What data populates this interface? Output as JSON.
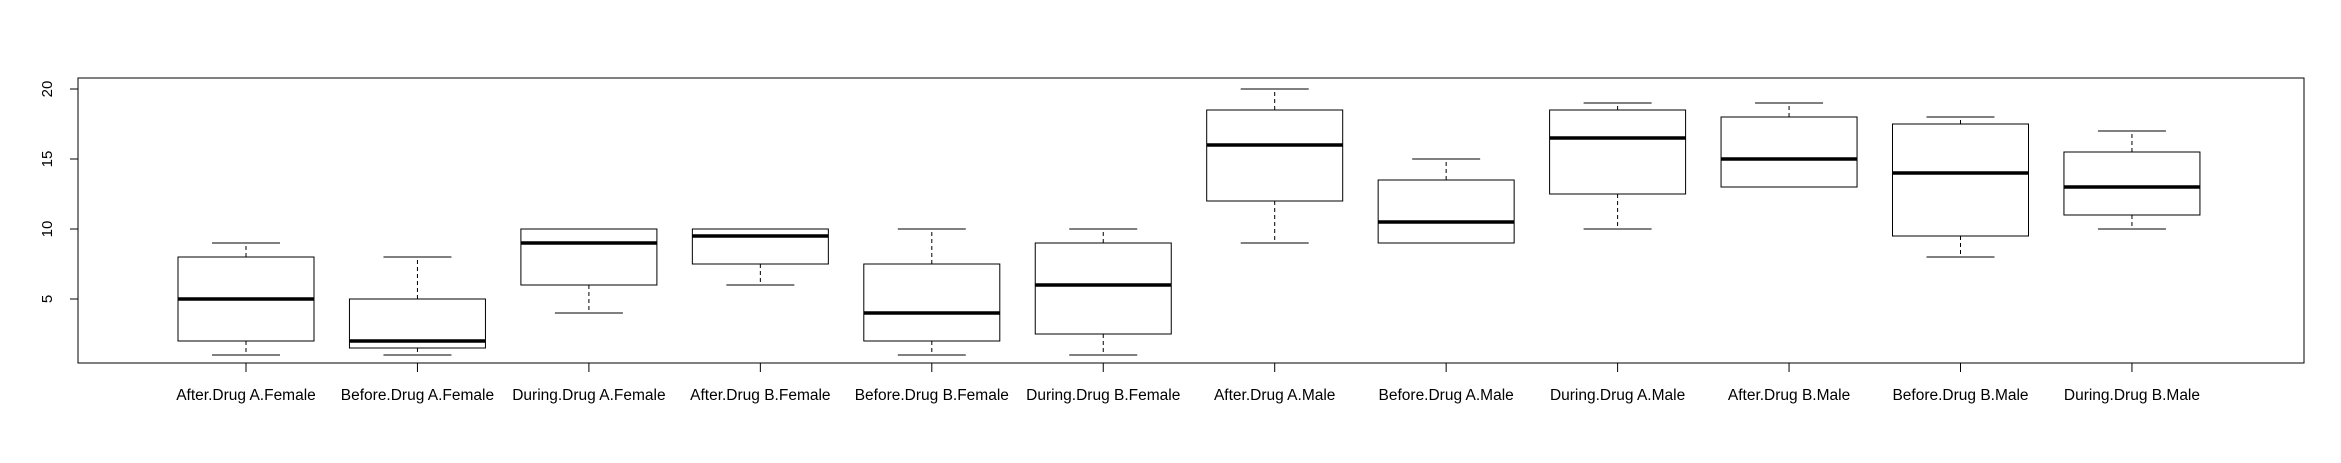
{
  "chart_data": {
    "type": "boxplot",
    "title": "",
    "xlabel": "",
    "ylabel": "",
    "ylim": [
      0,
      20
    ],
    "yticks": [
      5,
      10,
      15,
      20
    ],
    "grid": false,
    "legend": "none",
    "categories": [
      "After.Drug A.Female",
      "Before.Drug A.Female",
      "During.Drug A.Female",
      "After.Drug B.Female",
      "Before.Drug B.Female",
      "During.Drug B.Female",
      "After.Drug A.Male",
      "Before.Drug A.Male",
      "During.Drug A.Male",
      "After.Drug B.Male",
      "Before.Drug B.Male",
      "During.Drug B.Male"
    ],
    "boxes": [
      {
        "min": 1,
        "q1": 2,
        "median": 5,
        "q3": 8,
        "max": 9
      },
      {
        "min": 1,
        "q1": 1.5,
        "median": 2,
        "q3": 5,
        "max": 8
      },
      {
        "min": 4,
        "q1": 6,
        "median": 9,
        "q3": 10,
        "max": 10
      },
      {
        "min": 6,
        "q1": 7.5,
        "median": 9.5,
        "q3": 10,
        "max": 10
      },
      {
        "min": 1,
        "q1": 2,
        "median": 4,
        "q3": 7.5,
        "max": 10
      },
      {
        "min": 1,
        "q1": 2.5,
        "median": 6,
        "q3": 9,
        "max": 10
      },
      {
        "min": 9,
        "q1": 12,
        "median": 16,
        "q3": 18.5,
        "max": 20
      },
      {
        "min": 9,
        "q1": 9,
        "median": 10.5,
        "q3": 13.5,
        "max": 15
      },
      {
        "min": 10,
        "q1": 12.5,
        "median": 16.5,
        "q3": 18.5,
        "max": 19
      },
      {
        "min": 13,
        "q1": 13,
        "median": 15,
        "q3": 18,
        "max": 19
      },
      {
        "min": 8,
        "q1": 9.5,
        "median": 14,
        "q3": 17.5,
        "max": 18
      },
      {
        "min": 10,
        "q1": 11,
        "median": 13,
        "q3": 15.5,
        "max": 17
      }
    ]
  }
}
